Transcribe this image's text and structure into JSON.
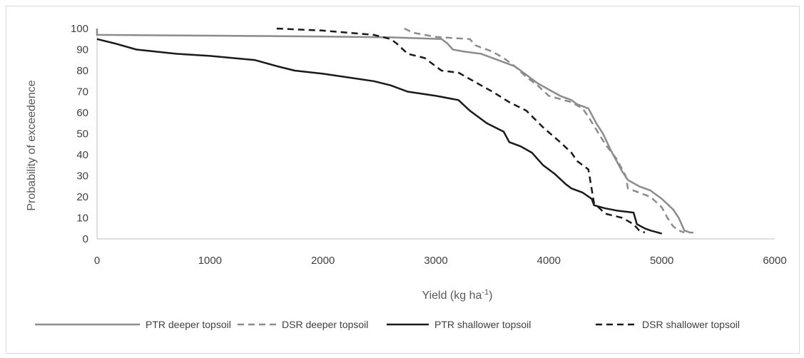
{
  "chart_data": {
    "type": "line",
    "xlabel": "Yield (kg ha",
    "xlabel_sup": "-1",
    "xlabel_close": ")",
    "ylabel": "Probability of exceedence",
    "xlim": [
      0,
      6000
    ],
    "ylim": [
      0,
      100
    ],
    "x_ticks": [
      0,
      1000,
      2000,
      3000,
      4000,
      5000,
      6000
    ],
    "y_ticks": [
      0,
      10,
      20,
      30,
      40,
      50,
      60,
      70,
      80,
      90,
      100
    ],
    "grid": false,
    "legend_position": "bottom",
    "series": [
      {
        "name": "PTR deeper topsoil",
        "color": "#8c8c8c",
        "dash": "solid",
        "points": [
          [
            0,
            100
          ],
          [
            0,
            97
          ],
          [
            1000,
            96.6
          ],
          [
            2000,
            96.2
          ],
          [
            2600,
            95.8
          ],
          [
            3050,
            95
          ],
          [
            3100,
            93
          ],
          [
            3150,
            90
          ],
          [
            3250,
            89
          ],
          [
            3400,
            88
          ],
          [
            3500,
            86
          ],
          [
            3600,
            84
          ],
          [
            3700,
            82
          ],
          [
            3800,
            78
          ],
          [
            3900,
            74
          ],
          [
            4000,
            71
          ],
          [
            4100,
            68
          ],
          [
            4200,
            66
          ],
          [
            4250,
            64
          ],
          [
            4350,
            62
          ],
          [
            4420,
            55
          ],
          [
            4480,
            50
          ],
          [
            4550,
            42
          ],
          [
            4650,
            32
          ],
          [
            4700,
            28
          ],
          [
            4800,
            25
          ],
          [
            4900,
            23
          ],
          [
            5000,
            19
          ],
          [
            5100,
            14
          ],
          [
            5150,
            10
          ],
          [
            5200,
            4
          ],
          [
            5250,
            3
          ],
          [
            5280,
            3
          ]
        ]
      },
      {
        "name": "DSR deeper topsoil",
        "color": "#8c8c8c",
        "dash": "dashed",
        "points": [
          [
            2720,
            100
          ],
          [
            2800,
            98
          ],
          [
            2900,
            97
          ],
          [
            3000,
            96
          ],
          [
            3300,
            95
          ],
          [
            3350,
            92
          ],
          [
            3500,
            89
          ],
          [
            3600,
            86
          ],
          [
            3700,
            82
          ],
          [
            3800,
            77
          ],
          [
            3900,
            73
          ],
          [
            4000,
            68
          ],
          [
            4200,
            65
          ],
          [
            4300,
            62
          ],
          [
            4350,
            58
          ],
          [
            4420,
            52
          ],
          [
            4500,
            45
          ],
          [
            4600,
            38
          ],
          [
            4680,
            30
          ],
          [
            4700,
            24
          ],
          [
            4800,
            22
          ],
          [
            4900,
            20
          ],
          [
            5000,
            15
          ],
          [
            5050,
            10
          ],
          [
            5100,
            6
          ],
          [
            5150,
            4
          ],
          [
            5200,
            3
          ]
        ]
      },
      {
        "name": "PTR shallower topsoil",
        "color": "#1a1a1a",
        "dash": "solid",
        "points": [
          [
            0,
            95
          ],
          [
            150,
            93
          ],
          [
            350,
            90
          ],
          [
            700,
            88
          ],
          [
            1000,
            87
          ],
          [
            1400,
            85
          ],
          [
            1600,
            82
          ],
          [
            1750,
            80
          ],
          [
            2000,
            78.5
          ],
          [
            2450,
            75
          ],
          [
            2600,
            73
          ],
          [
            2750,
            70
          ],
          [
            3000,
            68
          ],
          [
            3200,
            66
          ],
          [
            3300,
            61
          ],
          [
            3450,
            55
          ],
          [
            3600,
            51
          ],
          [
            3650,
            46
          ],
          [
            3750,
            44
          ],
          [
            3850,
            41
          ],
          [
            3950,
            35
          ],
          [
            4050,
            31
          ],
          [
            4150,
            26
          ],
          [
            4200,
            24
          ],
          [
            4300,
            22
          ],
          [
            4380,
            19
          ],
          [
            4400,
            16
          ],
          [
            4500,
            14.5
          ],
          [
            4600,
            13.5
          ],
          [
            4750,
            12.5
          ],
          [
            4780,
            7
          ],
          [
            4850,
            5
          ],
          [
            4900,
            4
          ],
          [
            5000,
            2.5
          ]
        ]
      },
      {
        "name": "DSR shallower topsoil",
        "color": "#1a1a1a",
        "dash": "dashed",
        "points": [
          [
            1590,
            100
          ],
          [
            2000,
            99
          ],
          [
            2450,
            97
          ],
          [
            2600,
            95
          ],
          [
            2650,
            93
          ],
          [
            2750,
            88
          ],
          [
            2900,
            86
          ],
          [
            3050,
            80
          ],
          [
            3200,
            79
          ],
          [
            3400,
            73
          ],
          [
            3500,
            70
          ],
          [
            3650,
            65
          ],
          [
            3800,
            61
          ],
          [
            3950,
            53
          ],
          [
            4100,
            46
          ],
          [
            4200,
            41
          ],
          [
            4250,
            37
          ],
          [
            4350,
            33
          ],
          [
            4400,
            17
          ],
          [
            4500,
            12
          ],
          [
            4650,
            10
          ],
          [
            4750,
            7
          ],
          [
            4800,
            4
          ],
          [
            4850,
            3
          ]
        ]
      }
    ]
  }
}
